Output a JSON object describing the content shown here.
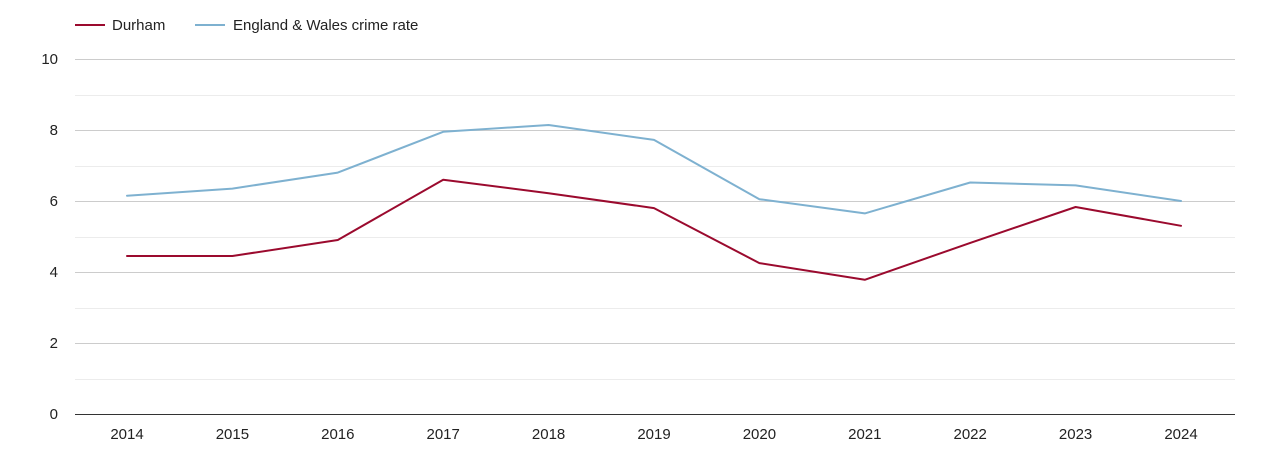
{
  "chart_data": {
    "type": "line",
    "title": "",
    "xlabel": "",
    "ylabel": "",
    "x": [
      "2014",
      "2015",
      "2016",
      "2017",
      "2018",
      "2019",
      "2020",
      "2021",
      "2022",
      "2023",
      "2024"
    ],
    "ylim": [
      0,
      10
    ],
    "yticks": [
      "0",
      "2",
      "4",
      "6",
      "8",
      "10"
    ],
    "grid": true,
    "legend_position": "top-left",
    "series": [
      {
        "name": "Durham",
        "color": "#9b0a2e",
        "values": [
          4.45,
          4.45,
          4.9,
          6.6,
          6.22,
          5.8,
          4.25,
          3.78,
          4.82,
          5.83,
          5.3
        ]
      },
      {
        "name": "England & Wales crime rate",
        "color": "#7eb1d0",
        "values": [
          6.15,
          6.35,
          6.8,
          7.95,
          8.14,
          7.72,
          6.05,
          5.65,
          6.52,
          6.44,
          6.0
        ]
      }
    ]
  }
}
